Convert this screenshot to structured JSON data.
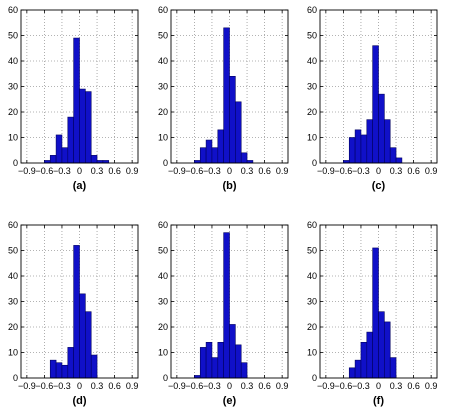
{
  "colors": {
    "bar_fill": "#1010c8",
    "bar_edge": "#000060",
    "grid": "#9a9a9a",
    "axis": "#000000"
  },
  "chart_data": [
    {
      "type": "bar",
      "panel_label": "(a)",
      "grid": true,
      "xlim": [
        -1.0,
        1.0
      ],
      "ylim": [
        0,
        60
      ],
      "x_ticks": [
        "−0.9",
        "−0.6",
        "−0.3",
        "0",
        "0.3",
        "0.6",
        "0.9"
      ],
      "y_ticks": [
        "0",
        "10",
        "20",
        "30",
        "40",
        "50",
        "60"
      ],
      "bin_centers": [
        -0.75,
        -0.65,
        -0.55,
        -0.45,
        -0.35,
        -0.25,
        -0.15,
        -0.05,
        0.05,
        0.15,
        0.25,
        0.35,
        0.45,
        0.55,
        0.65,
        0.75
      ],
      "values": [
        0,
        0,
        1,
        3,
        11,
        6,
        18,
        49,
        29,
        28,
        3,
        1,
        1,
        0,
        0,
        0
      ]
    },
    {
      "type": "bar",
      "panel_label": "(b)",
      "grid": true,
      "xlim": [
        -1.0,
        1.0
      ],
      "ylim": [
        0,
        60
      ],
      "x_ticks": [
        "−0.9",
        "−0.6",
        "−0.3",
        "0",
        "0.3",
        "0.6",
        "0.9"
      ],
      "y_ticks": [
        "0",
        "10",
        "20",
        "30",
        "40",
        "50",
        "60"
      ],
      "bin_centers": [
        -0.75,
        -0.65,
        -0.55,
        -0.45,
        -0.35,
        -0.25,
        -0.15,
        -0.05,
        0.05,
        0.15,
        0.25,
        0.35,
        0.45,
        0.55,
        0.65,
        0.75
      ],
      "values": [
        0,
        0,
        1,
        6,
        9,
        6,
        13,
        53,
        34,
        24,
        4,
        1,
        0,
        0,
        0,
        0
      ]
    },
    {
      "type": "bar",
      "panel_label": "(c)",
      "grid": true,
      "xlim": [
        -1.0,
        1.0
      ],
      "ylim": [
        0,
        60
      ],
      "x_ticks": [
        "−0.9",
        "−0.6",
        "−0.3",
        "0",
        "0.3",
        "0.6",
        "0.9"
      ],
      "y_ticks": [
        "0",
        "10",
        "20",
        "30",
        "40",
        "50",
        "60"
      ],
      "bin_centers": [
        -0.75,
        -0.65,
        -0.55,
        -0.45,
        -0.35,
        -0.25,
        -0.15,
        -0.05,
        0.05,
        0.15,
        0.25,
        0.35,
        0.45,
        0.55,
        0.65,
        0.75
      ],
      "values": [
        0,
        0,
        1,
        10,
        13,
        11,
        17,
        46,
        27,
        17,
        6,
        2,
        0,
        0,
        0,
        0
      ]
    },
    {
      "type": "bar",
      "panel_label": "(d)",
      "grid": true,
      "xlim": [
        -1.0,
        1.0
      ],
      "ylim": [
        0,
        60
      ],
      "x_ticks": [
        "−0.9",
        "−0.6",
        "−0.3",
        "0",
        "0.3",
        "0.6",
        "0.9"
      ],
      "y_ticks": [
        "0",
        "10",
        "20",
        "30",
        "40",
        "50",
        "60"
      ],
      "bin_centers": [
        -0.75,
        -0.65,
        -0.55,
        -0.45,
        -0.35,
        -0.25,
        -0.15,
        -0.05,
        0.05,
        0.15,
        0.25,
        0.35,
        0.45,
        0.55,
        0.65,
        0.75
      ],
      "values": [
        0,
        0,
        0,
        7,
        6,
        5,
        12,
        52,
        33,
        26,
        9,
        0,
        0,
        0,
        0,
        0
      ]
    },
    {
      "type": "bar",
      "panel_label": "(e)",
      "grid": true,
      "xlim": [
        -1.0,
        1.0
      ],
      "ylim": [
        0,
        60
      ],
      "x_ticks": [
        "−0.9",
        "−0.6",
        "−0.3",
        "0",
        "0.3",
        "0.6",
        "0.9"
      ],
      "y_ticks": [
        "0",
        "10",
        "20",
        "30",
        "40",
        "50",
        "60"
      ],
      "bin_centers": [
        -0.75,
        -0.65,
        -0.55,
        -0.45,
        -0.35,
        -0.25,
        -0.15,
        -0.05,
        0.05,
        0.15,
        0.25,
        0.35,
        0.45,
        0.55,
        0.65,
        0.75
      ],
      "values": [
        0,
        0,
        1,
        12,
        14,
        8,
        14,
        57,
        21,
        13,
        6,
        0,
        0,
        0,
        0,
        0
      ]
    },
    {
      "type": "bar",
      "panel_label": "(f)",
      "grid": true,
      "xlim": [
        -1.0,
        1.0
      ],
      "ylim": [
        0,
        60
      ],
      "x_ticks": [
        "−0.9",
        "−0.6",
        "−0.3",
        "0",
        "0.3",
        "0.6",
        "0.9"
      ],
      "y_ticks": [
        "0",
        "10",
        "20",
        "30",
        "40",
        "50",
        "60"
      ],
      "bin_centers": [
        -0.75,
        -0.65,
        -0.55,
        -0.45,
        -0.35,
        -0.25,
        -0.15,
        -0.05,
        0.05,
        0.15,
        0.25,
        0.35,
        0.45,
        0.55,
        0.65,
        0.75
      ],
      "values": [
        0,
        0,
        0,
        4,
        7,
        14,
        18,
        51,
        26,
        22,
        8,
        0,
        0,
        0,
        0,
        0
      ]
    }
  ]
}
